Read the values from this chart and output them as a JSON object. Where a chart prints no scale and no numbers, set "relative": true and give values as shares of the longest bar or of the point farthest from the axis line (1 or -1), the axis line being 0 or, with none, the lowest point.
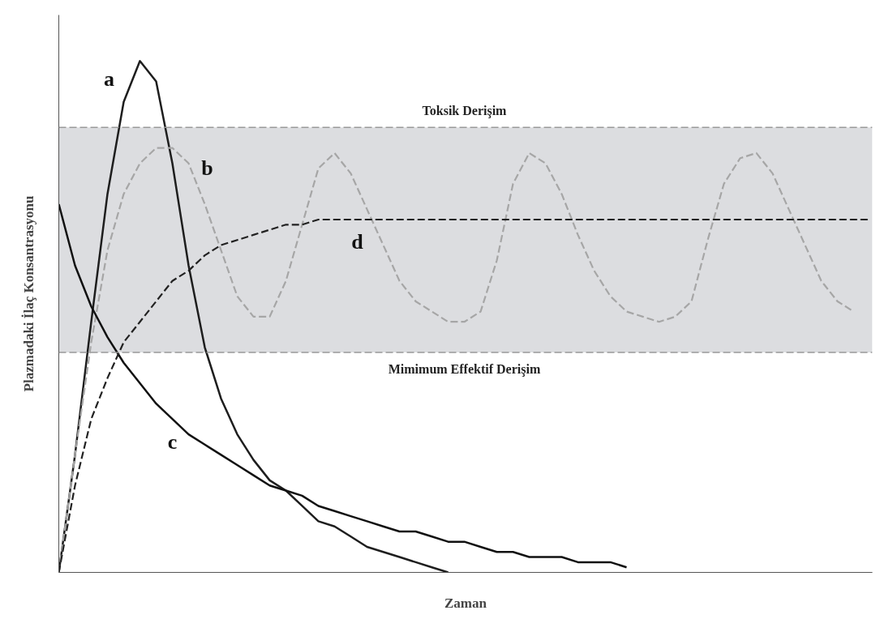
{
  "chart_data": {
    "type": "line",
    "relative": true,
    "xlabel": "Zaman",
    "ylabel": "Plazmadaki İlaç Konsantrasyonu",
    "categories": [
      null,
      null,
      null,
      null,
      null,
      null,
      null,
      null,
      null,
      null,
      null,
      null,
      null,
      null,
      null,
      null,
      null,
      null,
      null,
      null,
      null,
      null,
      null,
      null,
      null,
      null,
      null,
      null,
      null,
      null,
      null,
      null,
      null,
      null,
      null,
      null,
      null,
      null,
      null,
      null,
      null,
      null,
      null,
      null,
      null,
      null,
      null,
      null,
      null,
      null,
      null
    ],
    "series": [
      {
        "name": "a",
        "color": "#1e1e1e",
        "line_style": "solid",
        "values": [
          0,
          0.23,
          0.49,
          0.74,
          0.92,
          1,
          0.96,
          0.8,
          0.6,
          0.44,
          0.34,
          0.27,
          0.22,
          0.18,
          0.16,
          0.13,
          0.1,
          0.09,
          0.07,
          0.05,
          0.04,
          0.03,
          0.02,
          0.01,
          0,
          null,
          null,
          null,
          null,
          null,
          null,
          null,
          null,
          null,
          null,
          null,
          null,
          null,
          null,
          null,
          null,
          null,
          null,
          null,
          null,
          null,
          null,
          null,
          null,
          null,
          null
        ]
      },
      {
        "name": "b",
        "color": "#a6a6a6",
        "line_style": "dashed",
        "values": [
          0,
          0.23,
          0.45,
          0.63,
          0.74,
          0.8,
          0.83,
          0.83,
          0.8,
          0.72,
          0.63,
          0.54,
          0.5,
          0.5,
          0.57,
          0.68,
          0.79,
          0.82,
          0.78,
          0.71,
          0.64,
          0.57,
          0.53,
          0.51,
          0.49,
          0.49,
          0.51,
          0.61,
          0.76,
          0.82,
          0.8,
          0.74,
          0.66,
          0.59,
          0.54,
          0.51,
          0.5,
          0.49,
          0.5,
          0.53,
          0.65,
          0.76,
          0.81,
          0.82,
          0.78,
          0.71,
          0.64,
          0.57,
          0.53,
          0.51,
          null
        ]
      },
      {
        "name": "c",
        "color": "#111111",
        "line_style": "solid",
        "values": [
          0.72,
          0.6,
          0.52,
          0.46,
          0.41,
          0.37,
          0.33,
          0.3,
          0.27,
          0.25,
          0.23,
          0.21,
          0.19,
          0.17,
          0.16,
          0.15,
          0.13,
          0.12,
          0.11,
          0.1,
          0.09,
          0.08,
          0.08,
          0.07,
          0.06,
          0.06,
          0.05,
          0.04,
          0.04,
          0.03,
          0.03,
          0.03,
          0.02,
          0.02,
          0.02,
          0.01,
          null,
          null,
          null,
          null,
          null,
          null,
          null,
          null,
          null,
          null,
          null,
          null,
          null,
          null,
          null
        ]
      },
      {
        "name": "d",
        "color": "#222222",
        "line_style": "dashed",
        "values": [
          0,
          0.17,
          0.3,
          0.38,
          0.45,
          0.49,
          0.53,
          0.57,
          0.59,
          0.62,
          0.64,
          0.65,
          0.66,
          0.67,
          0.68,
          0.68,
          0.69,
          0.69,
          0.69,
          0.69,
          0.69,
          0.69,
          0.69,
          0.69,
          0.69,
          0.69,
          0.69,
          0.69,
          0.69,
          0.69,
          0.69,
          0.69,
          0.69,
          0.69,
          0.69,
          0.69,
          0.69,
          0.69,
          0.69,
          0.69,
          0.69,
          0.69,
          0.69,
          0.69,
          0.69,
          0.69,
          0.69,
          0.69,
          0.69,
          0.69,
          0.69
        ]
      }
    ],
    "bands": [
      {
        "axis": "y",
        "from": 0.43,
        "to": 0.87,
        "color": "#dcdde0"
      }
    ],
    "ref_lines": [
      {
        "axis": "y",
        "value": 0.87,
        "label": "Toksik Derişim",
        "color": "#999999",
        "line_style": "dashed"
      },
      {
        "axis": "y",
        "value": 0.43,
        "label": "Mimimum Effektif Derişim",
        "color": "#999999",
        "line_style": "dashed"
      }
    ],
    "tick_labels": false,
    "grid": false
  }
}
